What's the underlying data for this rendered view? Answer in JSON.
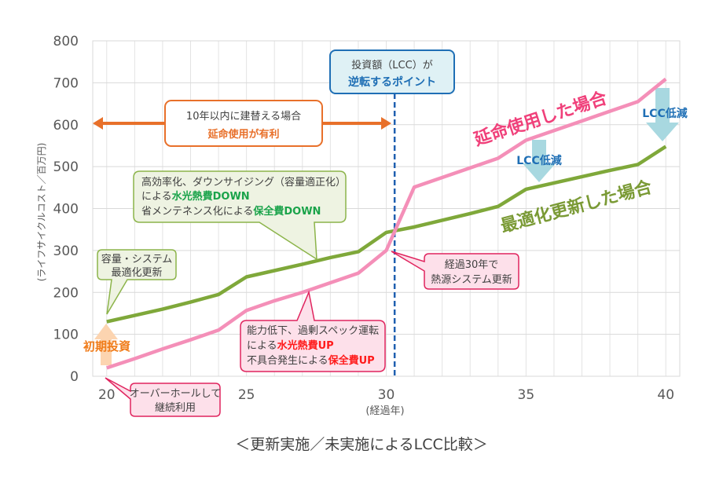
{
  "chart_data": {
    "type": "line",
    "title": "＜更新実施／未実施によるLCC比較＞",
    "xlabel": "(経過年)",
    "ylabel": "(ライフサイクルコスト／百万円)",
    "xlim": [
      19.5,
      40.5
    ],
    "ylim": [
      0,
      800
    ],
    "x_ticks": [
      20,
      25,
      30,
      35,
      40
    ],
    "y_ticks": [
      0,
      100,
      200,
      300,
      400,
      500,
      600,
      700,
      800
    ],
    "grid": true,
    "x": [
      20,
      21,
      22,
      23,
      24,
      25,
      26,
      27,
      28,
      29,
      30,
      31,
      32,
      33,
      34,
      35,
      36,
      37,
      38,
      39,
      40
    ],
    "series": [
      {
        "name": "延命使用した場合",
        "color": "#f48fb8",
        "values": [
          20,
          42,
          65,
          87,
          110,
          157,
          180,
          200,
          223,
          246,
          300,
          451,
          474,
          497,
          520,
          563,
          586,
          609,
          632,
          655,
          709
        ]
      },
      {
        "name": "最適化更新した場合",
        "color": "#7fa83a",
        "values": [
          130,
          145,
          160,
          177,
          195,
          237,
          252,
          267,
          283,
          297,
          343,
          356,
          372,
          388,
          405,
          446,
          461,
          476,
          491,
          505,
          548
        ]
      }
    ],
    "crossover_x": 30.3
  },
  "annotations": {
    "crossover": {
      "line1": "投資額（LCC）が",
      "line2": "逆転するポイント"
    },
    "rebuild": {
      "line1": "10年以内に建替える場合",
      "line2": "延命使用が有利"
    },
    "green_big": {
      "line1": "高効率化、ダウンサイジング（容量適正化）",
      "line2a": "による",
      "line2b": "水光熱費DOWN",
      "line3a": "省メンテネンス化による",
      "line3b": "保全費DOWN"
    },
    "green_small": {
      "line1": "容量・システム",
      "line2": "最適化更新"
    },
    "pink_mid": {
      "line1": "能力低下、過剰スペック運転",
      "line2a": "による",
      "line2b": "水光熱費UP",
      "line3a": "不具合発生による",
      "line3b": "保全費UP"
    },
    "pink_right": {
      "line1": "経過30年で",
      "line2": "熱源システム更新"
    },
    "pink_bottom": {
      "line1": "オーバーホールして",
      "line2": "継続利用"
    },
    "initial": "初期投資",
    "lcc_down_1": "LCC低減",
    "lcc_down_2": "LCC低減",
    "label_extend": "延命使用した場合",
    "label_optimize": "最適化更新した場合"
  },
  "colors": {
    "orange": "#e8702a",
    "blue": "#1f6fb5",
    "pink": "#e0245e",
    "green": "#1aa34a",
    "red": "#ff1a1a"
  }
}
